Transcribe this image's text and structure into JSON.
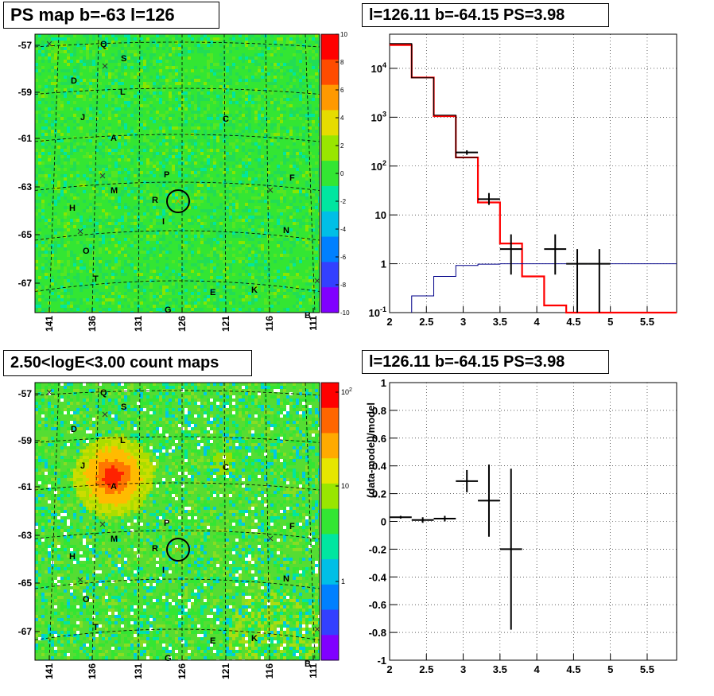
{
  "titles": {
    "ps_map": "PS map b=-63 l=126",
    "spectrum": "l=126.11 b=-64.15 PS=3.98",
    "count_map": "2.50<logE<3.00 count maps",
    "residual": "l=126.11 b=-64.15 PS=3.98"
  },
  "maps": {
    "lat_ticks": [
      "-57",
      "-59",
      "-61",
      "-63",
      "-65",
      "-67"
    ],
    "lon_ticks": [
      "141",
      "136",
      "131",
      "126",
      "121",
      "116",
      "111"
    ],
    "source_labels": [
      "Q",
      "S",
      "D",
      "L",
      "J",
      "C",
      "A",
      "P",
      "F",
      "M",
      "R",
      "H",
      "I",
      "N",
      "O",
      "T",
      "E",
      "K",
      "G",
      "B"
    ],
    "ps_colorbar": {
      "ticks": [
        "10",
        "8",
        "6",
        "4",
        "2",
        "0",
        "-2",
        "-4",
        "-6",
        "-8",
        "-10"
      ],
      "colors": [
        "#ff0000",
        "#ff4c00",
        "#ff9900",
        "#e6dc00",
        "#99e600",
        "#33e633",
        "#00e6a0",
        "#00bfe6",
        "#0080ff",
        "#3340ff",
        "#8000ff"
      ]
    },
    "count_colorbar": {
      "ticks": [
        "10^2",
        "10",
        "1"
      ],
      "colors": [
        "#ff0000",
        "#ff6600",
        "#ffaa00",
        "#e6e600",
        "#99e600",
        "#33e633",
        "#00e6a0",
        "#00bfe6",
        "#0080ff",
        "#3340ff",
        "#8000ff"
      ]
    },
    "background_colors": {
      "ps": "#33e633",
      "count": "#55dd33"
    }
  },
  "chart_data": [
    {
      "type": "line",
      "name": "spectrum",
      "xlim": [
        2,
        5.9
      ],
      "ylim": [
        0.1,
        50000
      ],
      "yscale": "log",
      "grid": true,
      "x_ticks": [
        "2",
        "2.5",
        "3",
        "3.5",
        "4",
        "4.5",
        "5",
        "5.5"
      ],
      "y_ticks": [
        {
          "v": 0.1,
          "label": "10^-1"
        },
        {
          "v": 1,
          "label": "1"
        },
        {
          "v": 10,
          "label": "10"
        },
        {
          "v": 100,
          "label": "10^2"
        },
        {
          "v": 1000,
          "label": "10^3"
        },
        {
          "v": 10000,
          "label": "10^4"
        }
      ],
      "series": [
        {
          "color": "#ff0000",
          "edges": [
            2,
            2.3,
            2.6,
            2.9,
            3.2,
            3.5,
            3.8,
            4.1,
            4.4,
            5.9
          ],
          "values": [
            30000,
            6500,
            1050,
            150,
            18,
            2.6,
            0.55,
            0.14,
            0.1
          ]
        },
        {
          "color": "#000088",
          "edges": [
            2.3,
            2.6,
            2.9,
            3.2,
            3.5,
            5.9
          ],
          "values": [
            0.22,
            0.55,
            0.92,
            0.98,
            1.0
          ]
        },
        {
          "color": "#000000",
          "edges": [
            2,
            2.3,
            2.6,
            2.9,
            3.2
          ],
          "values": [
            32000,
            6400,
            1100,
            150
          ]
        }
      ],
      "points": [
        {
          "x": 3.05,
          "y": 190,
          "xerr": 0.15,
          "ylo": 170,
          "yhi": 210
        },
        {
          "x": 3.35,
          "y": 21,
          "xerr": 0.15,
          "ylo": 16,
          "yhi": 28
        },
        {
          "x": 3.65,
          "y": 2,
          "xerr": 0.15,
          "ylo": 0.6,
          "yhi": 4
        },
        {
          "x": 4.25,
          "y": 2,
          "xerr": 0.15,
          "ylo": 0.6,
          "yhi": 4
        },
        {
          "x": 4.55,
          "y": 1,
          "xerr": 0.15,
          "ylo": 0.1,
          "yhi": 2
        },
        {
          "x": 4.85,
          "y": 1,
          "xerr": 0.15,
          "ylo": 0.1,
          "yhi": 2
        }
      ]
    },
    {
      "type": "scatter",
      "name": "residual",
      "ylabel": "(data-model)/model",
      "xlim": [
        2,
        5.9
      ],
      "ylim": [
        -1,
        1
      ],
      "grid": true,
      "x_ticks": [
        "2",
        "2.5",
        "3",
        "3.5",
        "4",
        "4.5",
        "5",
        "5.5"
      ],
      "y_ticks": [
        "-1",
        "-0.8",
        "-0.6",
        "-0.4",
        "-0.2",
        "0",
        "0.2",
        "0.4",
        "0.6",
        "0.8",
        "1"
      ],
      "points": [
        {
          "x": 2.15,
          "y": 0.03,
          "xerr": 0.15,
          "yerr": 0.01
        },
        {
          "x": 2.45,
          "y": 0.01,
          "xerr": 0.15,
          "yerr": 0.02
        },
        {
          "x": 2.75,
          "y": 0.02,
          "xerr": 0.15,
          "yerr": 0.02
        },
        {
          "x": 3.05,
          "y": 0.29,
          "xerr": 0.15,
          "yerr": 0.08
        },
        {
          "x": 3.35,
          "y": 0.15,
          "xerr": 0.15,
          "yerr": 0.26
        },
        {
          "x": 3.65,
          "y": -0.2,
          "xerr": 0.15,
          "yerr": 0.58
        }
      ]
    }
  ]
}
